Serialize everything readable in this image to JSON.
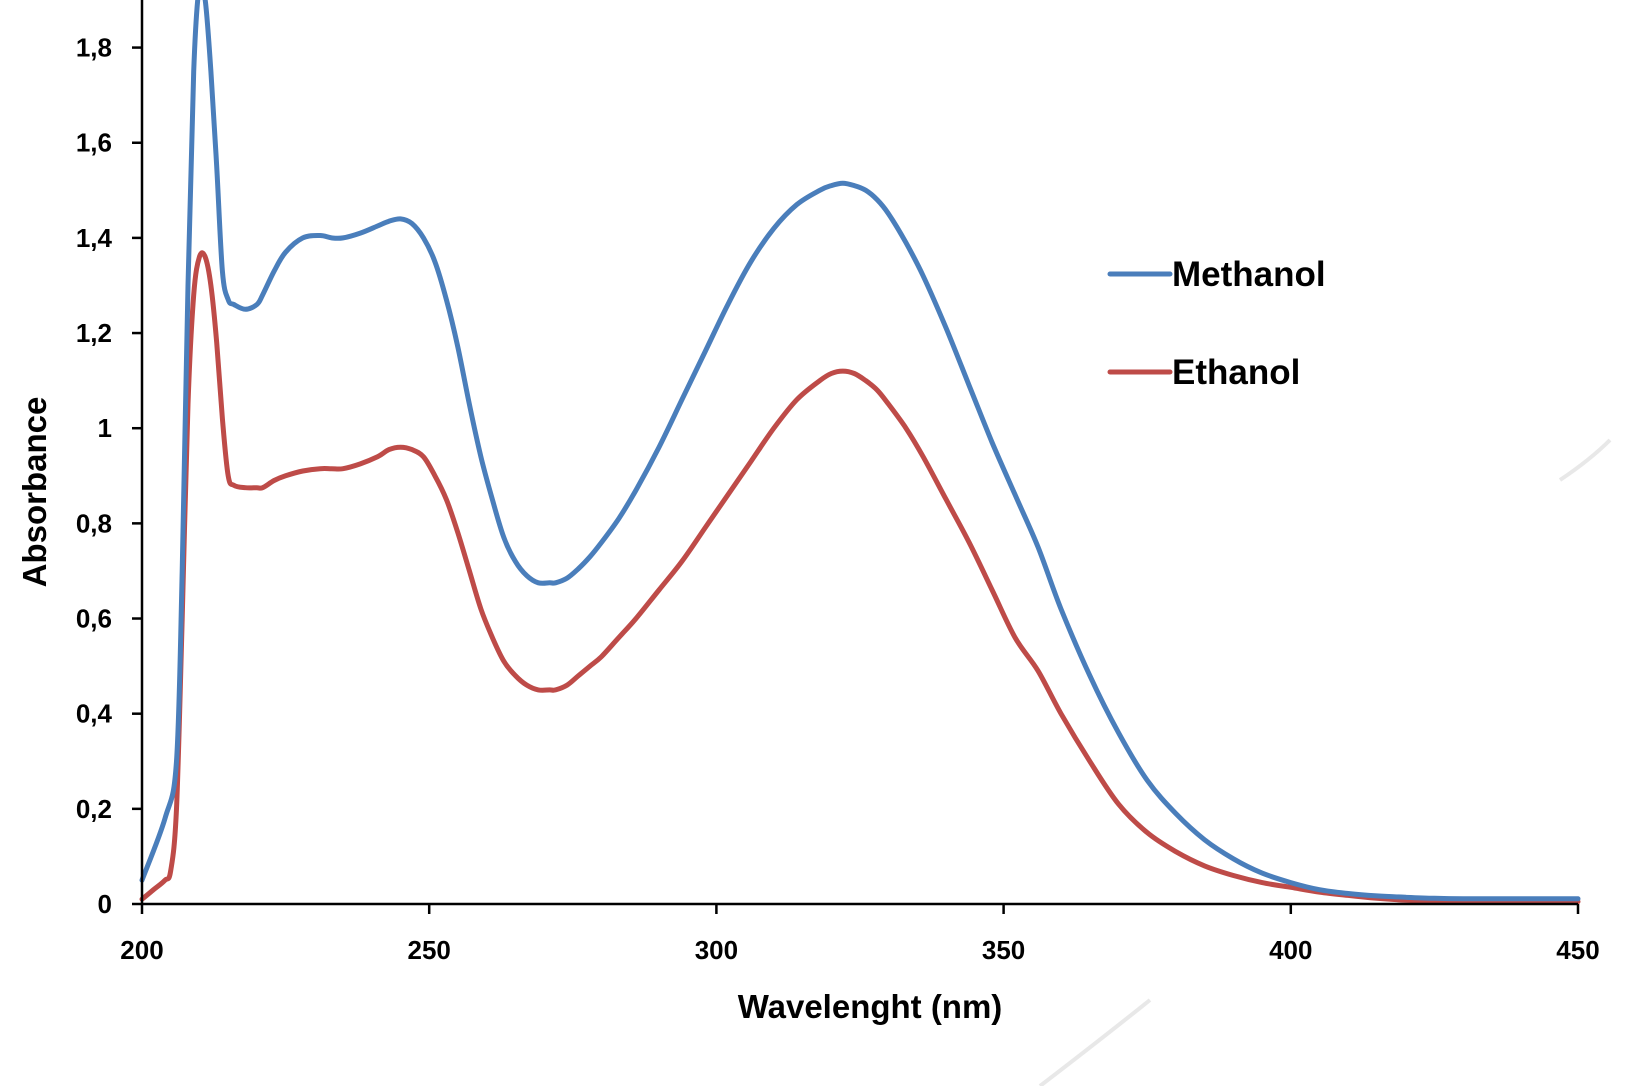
{
  "chart_data": {
    "type": "line",
    "title": "",
    "xlabel": "Wavelenght (nm)",
    "ylabel": "Absorbance",
    "xlim": [
      200,
      450
    ],
    "ylim": [
      0,
      1.9
    ],
    "xticks": [
      200,
      250,
      300,
      350,
      400,
      450
    ],
    "xtick_labels": [
      "200",
      "250",
      "300",
      "350",
      "400",
      "450"
    ],
    "yticks": [
      0,
      0.2,
      0.4,
      0.6,
      0.8,
      1,
      1.2,
      1.4,
      1.6,
      1.8
    ],
    "ytick_labels": [
      "0",
      "0,2",
      "0,4",
      "0,6",
      "0,8",
      "1",
      "1,2",
      "1,4",
      "1,6",
      "1,8"
    ],
    "grid": false,
    "legend_position": "right",
    "series": [
      {
        "name": "Methanol",
        "color": "#4a7ebb",
        "x": [
          200,
          204,
          206,
          207,
          208,
          209,
          210,
          211,
          212,
          213,
          214,
          215,
          216,
          218,
          220,
          221,
          223,
          225,
          228,
          231,
          233,
          235,
          238,
          241,
          243,
          245,
          247,
          249,
          251,
          253,
          255,
          257,
          259,
          261,
          263,
          265,
          267,
          269,
          271,
          272,
          274,
          276,
          278,
          280,
          283,
          286,
          290,
          294,
          298,
          302,
          306,
          310,
          314,
          318,
          320,
          322,
          324,
          326,
          328,
          330,
          333,
          336,
          340,
          344,
          348,
          352,
          356,
          360,
          365,
          370,
          375,
          380,
          385,
          390,
          395,
          400,
          405,
          410,
          415,
          420,
          425,
          430,
          435,
          440,
          445,
          450
        ],
        "y": [
          0.05,
          0.18,
          0.3,
          0.7,
          1.3,
          1.75,
          1.93,
          1.9,
          1.75,
          1.55,
          1.33,
          1.27,
          1.26,
          1.25,
          1.26,
          1.28,
          1.33,
          1.37,
          1.4,
          1.405,
          1.4,
          1.4,
          1.41,
          1.425,
          1.435,
          1.44,
          1.43,
          1.4,
          1.35,
          1.27,
          1.17,
          1.05,
          0.94,
          0.85,
          0.77,
          0.72,
          0.69,
          0.675,
          0.675,
          0.675,
          0.685,
          0.705,
          0.73,
          0.76,
          0.81,
          0.87,
          0.96,
          1.06,
          1.16,
          1.26,
          1.35,
          1.42,
          1.47,
          1.5,
          1.51,
          1.515,
          1.51,
          1.5,
          1.48,
          1.45,
          1.39,
          1.32,
          1.21,
          1.09,
          0.97,
          0.86,
          0.75,
          0.62,
          0.48,
          0.36,
          0.26,
          0.19,
          0.135,
          0.095,
          0.065,
          0.045,
          0.03,
          0.022,
          0.017,
          0.014,
          0.012,
          0.011,
          0.011,
          0.011,
          0.011,
          0.011
        ]
      },
      {
        "name": "Ethanol",
        "color": "#be4b48",
        "x": [
          200,
          202,
          204,
          205,
          206,
          207,
          208,
          209,
          210,
          211,
          212,
          213,
          214,
          215,
          216,
          218,
          220,
          221,
          223,
          225,
          228,
          231,
          233,
          235,
          238,
          241,
          243,
          245,
          247,
          249,
          251,
          253,
          255,
          257,
          259,
          261,
          263,
          265,
          267,
          269,
          271,
          272,
          274,
          276,
          278,
          280,
          283,
          286,
          290,
          294,
          298,
          302,
          306,
          310,
          314,
          318,
          320,
          322,
          324,
          326,
          328,
          330,
          333,
          336,
          340,
          344,
          348,
          352,
          356,
          360,
          365,
          370,
          375,
          380,
          385,
          390,
          395,
          400,
          405,
          410,
          415,
          420,
          425,
          430,
          435,
          440,
          445,
          450
        ],
        "y": [
          0.01,
          0.03,
          0.05,
          0.07,
          0.2,
          0.6,
          1.05,
          1.28,
          1.36,
          1.36,
          1.3,
          1.18,
          1.02,
          0.9,
          0.88,
          0.875,
          0.875,
          0.875,
          0.89,
          0.9,
          0.91,
          0.915,
          0.915,
          0.915,
          0.925,
          0.94,
          0.955,
          0.96,
          0.955,
          0.94,
          0.9,
          0.85,
          0.78,
          0.7,
          0.62,
          0.56,
          0.51,
          0.48,
          0.46,
          0.45,
          0.45,
          0.45,
          0.46,
          0.48,
          0.5,
          0.52,
          0.56,
          0.6,
          0.66,
          0.72,
          0.79,
          0.86,
          0.93,
          1.0,
          1.06,
          1.1,
          1.115,
          1.12,
          1.115,
          1.1,
          1.08,
          1.05,
          1.0,
          0.94,
          0.85,
          0.76,
          0.66,
          0.56,
          0.49,
          0.4,
          0.3,
          0.21,
          0.15,
          0.11,
          0.08,
          0.06,
          0.045,
          0.035,
          0.025,
          0.018,
          0.012,
          0.008,
          0.006,
          0.005,
          0.005,
          0.005,
          0.005,
          0.005
        ]
      }
    ]
  }
}
